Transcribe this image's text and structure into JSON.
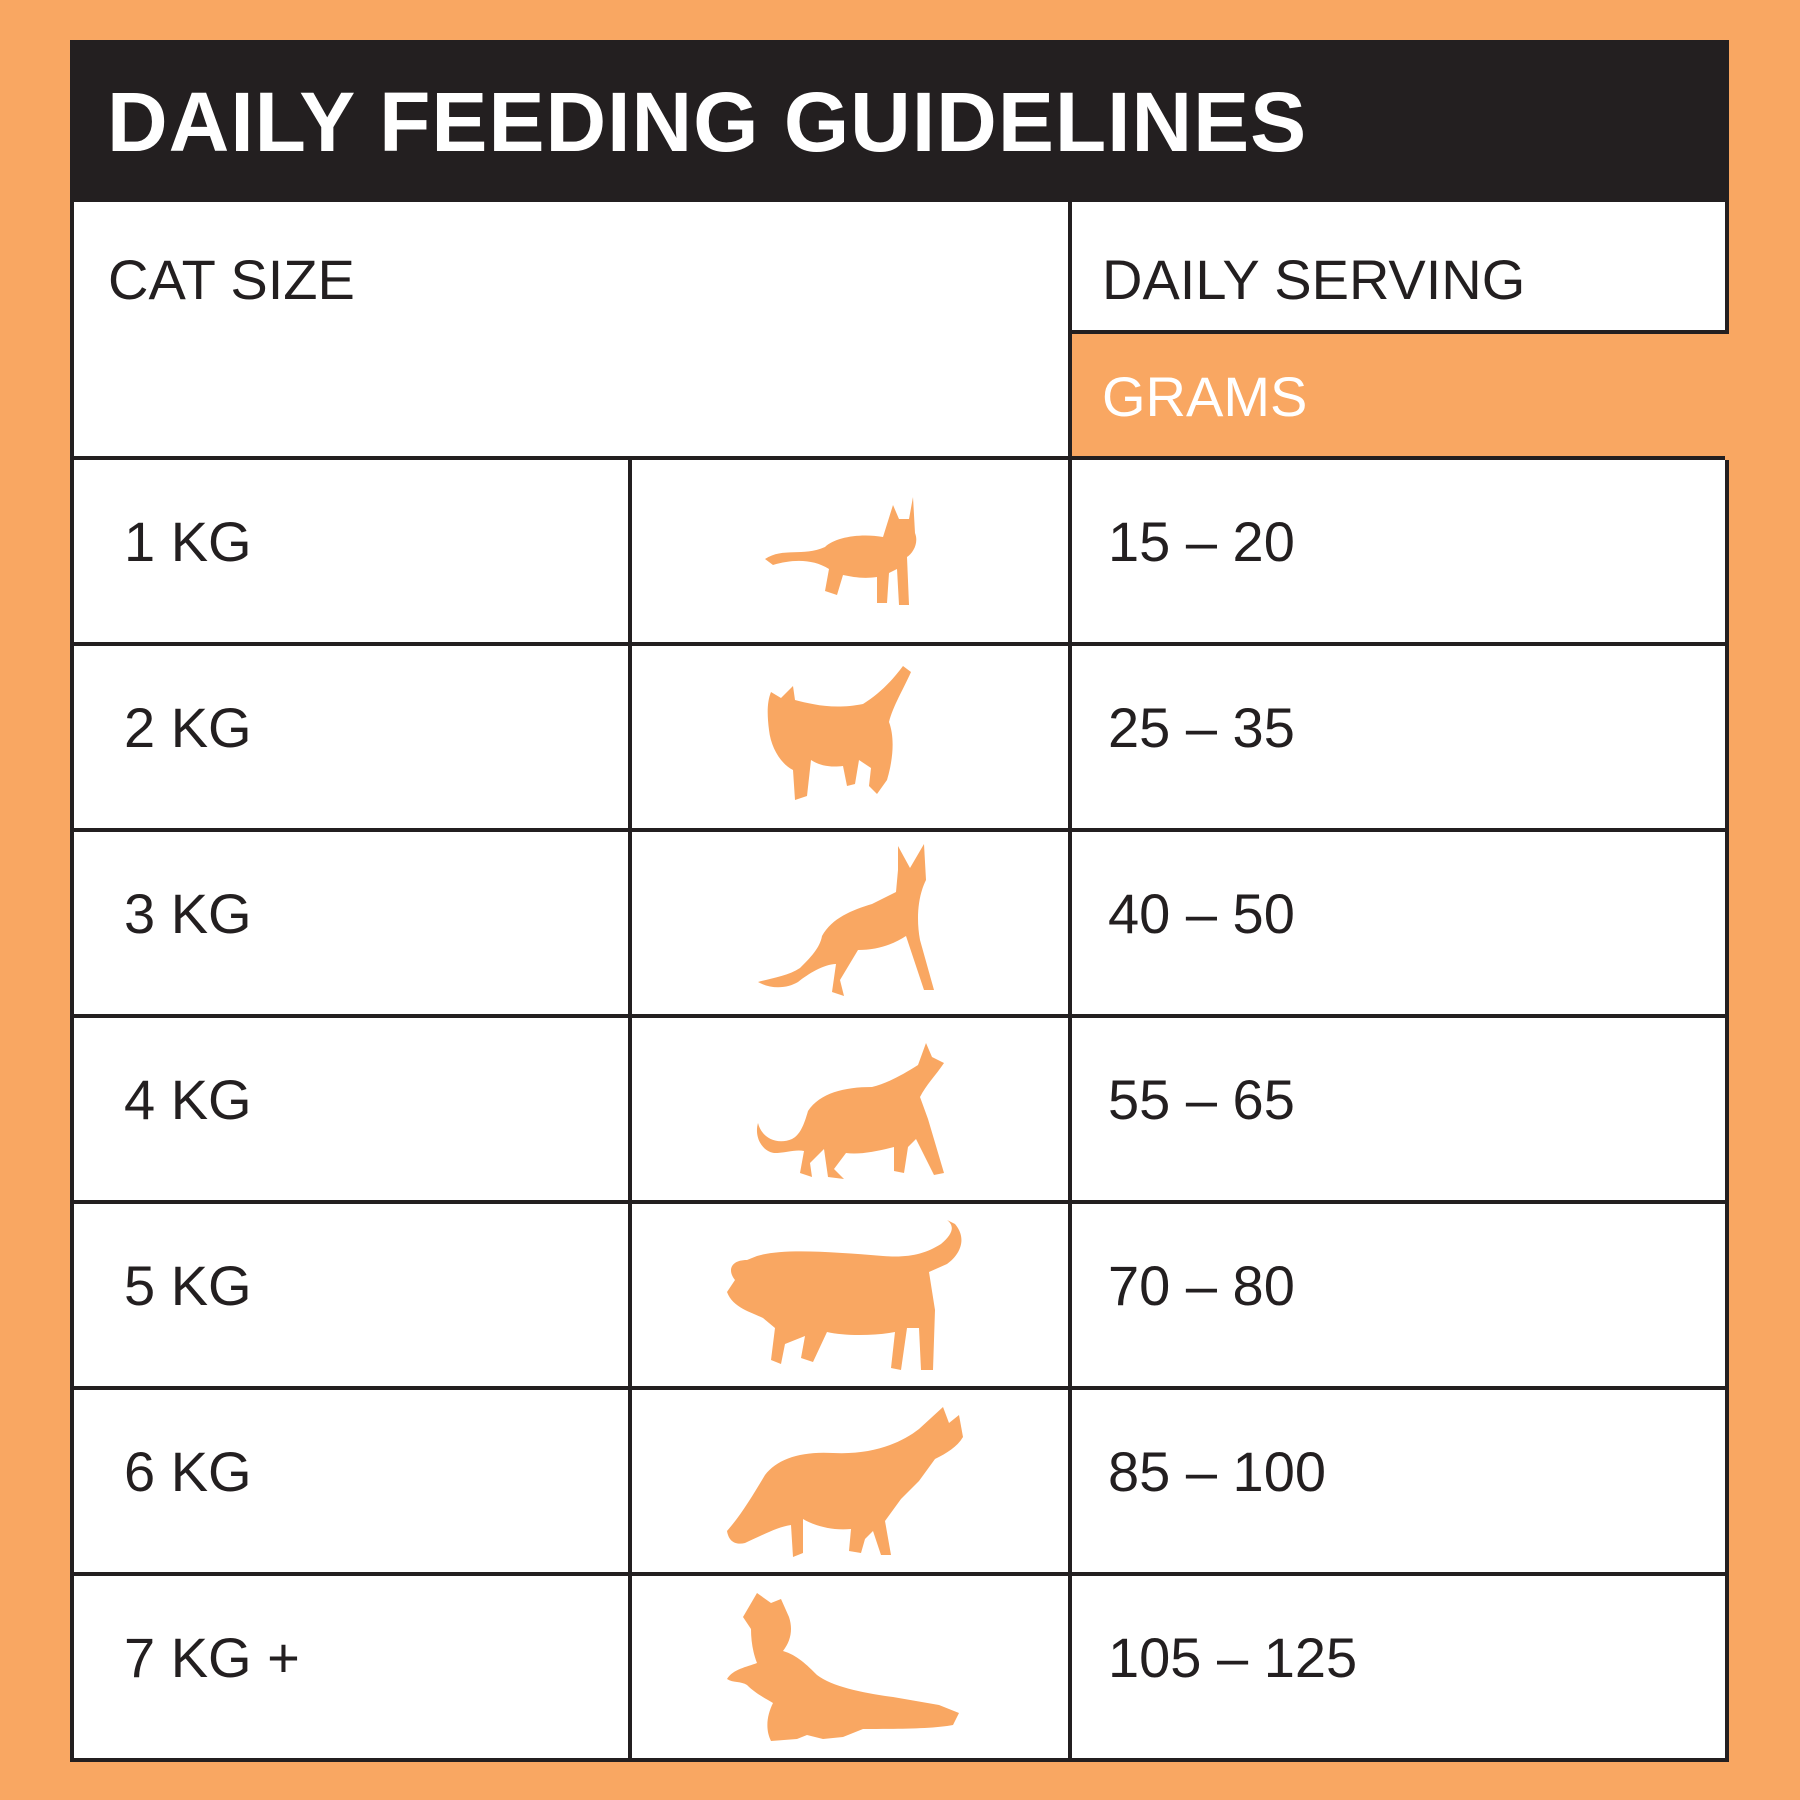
{
  "title": "DAILY FEEDING GUIDELINES",
  "headers": {
    "cat_size": "CAT SIZE",
    "daily_serving": "DAILY SERVING",
    "unit": "GRAMS"
  },
  "rows": [
    {
      "size": "1 KG",
      "serving": "15 – 20",
      "icon": "standing-cat-icon"
    },
    {
      "size": "2 KG",
      "serving": "25 – 35",
      "icon": "cat-tail-up-icon"
    },
    {
      "size": "3 KG",
      "serving": "40 – 50",
      "icon": "alert-cat-icon"
    },
    {
      "size": "4 KG",
      "serving": "55 – 65",
      "icon": "walking-cat-icon"
    },
    {
      "size": "5 KG",
      "serving": "70 – 80",
      "icon": "large-walking-cat-icon"
    },
    {
      "size": "6 KG",
      "serving": "85 – 100",
      "icon": "prowling-cat-icon"
    },
    {
      "size": "7 KG +",
      "serving": "105 – 125",
      "icon": "sitting-cat-icon"
    }
  ],
  "colors": {
    "accent": "#f9a762",
    "dark": "#231f20",
    "background": "#ffffff"
  }
}
